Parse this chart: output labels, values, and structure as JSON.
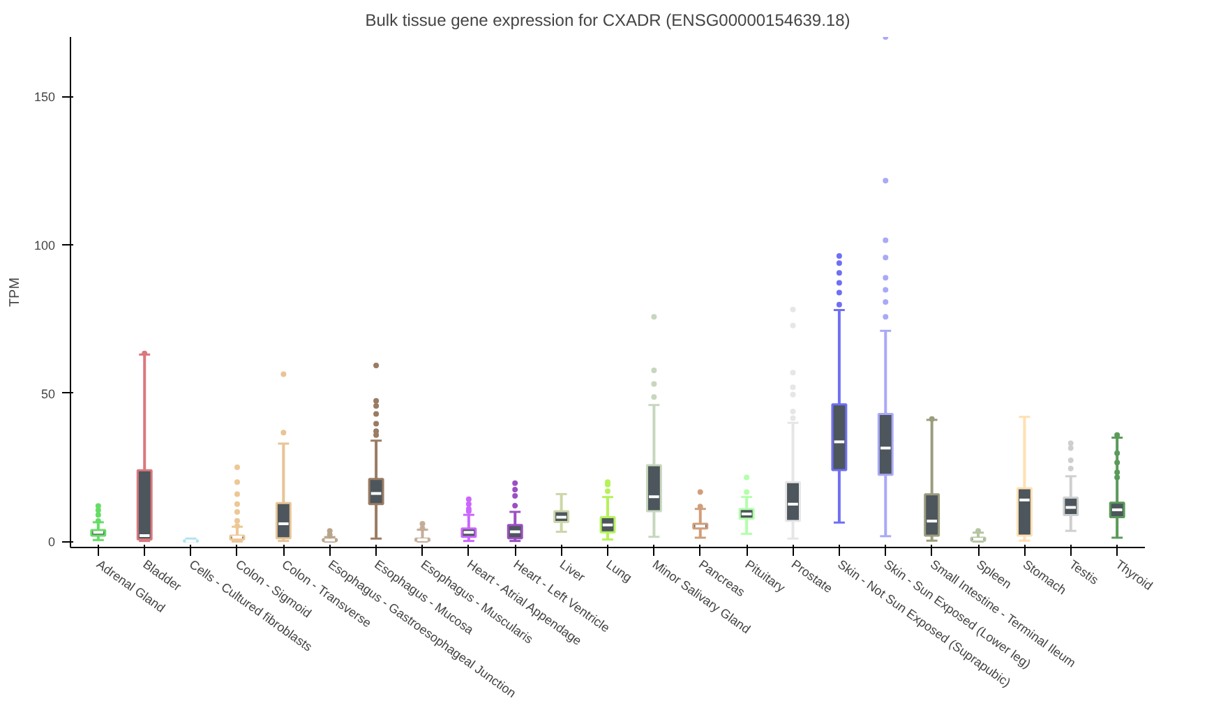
{
  "chart_data": {
    "type": "box",
    "title": "Bulk tissue gene expression for CXADR (ENSG00000154639.18)",
    "ylabel": "TPM",
    "categories": [
      "Adrenal Gland",
      "Bladder",
      "Cells - Cultured fibroblasts",
      "Colon - Sigmoid",
      "Colon - Transverse",
      "Esophagus - Gastroesophageal Junction",
      "Esophagus - Mucosa",
      "Esophagus - Muscularis",
      "Heart - Atrial Appendage",
      "Heart - Left Ventricle",
      "Liver",
      "Lung",
      "Minor Salivary Gland",
      "Pancreas",
      "Pituitary",
      "Prostate",
      "Skin - Not Sun Exposed (Suprapubic)",
      "Skin - Sun Exposed (Lower leg)",
      "Small Intestine - Terminal Ileum",
      "Spleen",
      "Stomach",
      "Testis",
      "Thyroid"
    ],
    "colors": [
      "#66dd66",
      "#d9787d",
      "#aee3ef",
      "#edc795",
      "#e8c496",
      "#b7a48b",
      "#9a7b63",
      "#c4ad98",
      "#cc66ff",
      "#9c4fc2",
      "#ccd6a8",
      "#b5f25a",
      "#c7d7be",
      "#d19e79",
      "#b3ffab",
      "#e6e6e6",
      "#6f6ff5",
      "#a9a9f7",
      "#9c9c7e",
      "#b5c4a1",
      "#ffe0b3",
      "#cfcfcf",
      "#5a9a5a"
    ],
    "boxes": [
      {
        "low": 0.5,
        "q1": 2,
        "median": 3.1,
        "q3": 3.9,
        "high": 6.5,
        "outliers": [
          12,
          10.6,
          9,
          6.9
        ]
      },
      {
        "low": 0.2,
        "q1": 0.7,
        "median": 2,
        "q3": 24,
        "high": 63,
        "outliers": [
          63.4
        ]
      },
      {
        "low": 0,
        "q1": 0,
        "median": 0.2,
        "q3": 0.4,
        "high": 1
      },
      {
        "low": 0,
        "q1": 0.7,
        "median": 1.5,
        "q3": 2,
        "high": 5,
        "outliers": [
          25,
          20,
          16,
          12.6,
          10,
          7,
          5.2
        ]
      },
      {
        "low": 0.2,
        "q1": 1.1,
        "median": 6,
        "q3": 13,
        "high": 33,
        "outliers": [
          36.7,
          56.4
        ]
      },
      {
        "low": 0,
        "q1": 0.2,
        "median": 0.5,
        "q3": 0.8,
        "high": 1.5,
        "outliers": [
          3.6,
          2.3
        ]
      },
      {
        "low": 1,
        "q1": 12.6,
        "median": 16.2,
        "q3": 21.1,
        "high": 34,
        "outliers": [
          59.3,
          47.4,
          45.7,
          43,
          39.7,
          37.2,
          35.9
        ]
      },
      {
        "low": 0,
        "q1": 0.3,
        "median": 0.6,
        "q3": 1,
        "high": 4,
        "outliers": [
          6,
          4.4
        ]
      },
      {
        "low": 0.2,
        "q1": 1.6,
        "median": 3.1,
        "q3": 4.4,
        "high": 9,
        "outliers": [
          14.3,
          12.6,
          11,
          10.2
        ]
      },
      {
        "low": 0.2,
        "q1": 1.1,
        "median": 3.3,
        "q3": 5.6,
        "high": 10,
        "outliers": [
          19.7,
          17.5,
          15.4,
          12.1
        ]
      },
      {
        "low": 3.3,
        "q1": 6.6,
        "median": 8.2,
        "q3": 10.2,
        "high": 16
      },
      {
        "low": 0.7,
        "q1": 3.1,
        "median": 5.6,
        "q3": 8.2,
        "high": 15,
        "outliers": [
          20,
          19.2,
          17
        ]
      },
      {
        "low": 1.6,
        "q1": 10.2,
        "median": 15.1,
        "q3": 25.7,
        "high": 46,
        "outliers": [
          75.7,
          57.7,
          53.1,
          48.7
        ]
      },
      {
        "low": 1.3,
        "q1": 4.4,
        "median": 5.2,
        "q3": 6,
        "high": 11,
        "outliers": [
          16.7,
          11.8
        ]
      },
      {
        "low": 2.6,
        "q1": 7.7,
        "median": 9.3,
        "q3": 11,
        "high": 15,
        "outliers": [
          21.6,
          16.7
        ]
      },
      {
        "low": 1,
        "q1": 6.9,
        "median": 12.6,
        "q3": 20,
        "high": 40,
        "outliers": [
          78.2,
          72.8,
          56.9,
          52,
          49.5,
          43.8,
          41.6
        ]
      },
      {
        "low": 6.4,
        "q1": 24.1,
        "median": 33.6,
        "q3": 46.2,
        "high": 78,
        "outliers": [
          96.2,
          93.8,
          90.5,
          87.2,
          83.9,
          79.8
        ]
      },
      {
        "low": 1.8,
        "q1": 22.5,
        "median": 31.5,
        "q3": 43,
        "high": 71,
        "outliers": [
          170,
          121.6,
          101.5,
          95.7,
          88.9,
          84.8,
          80.7,
          75.7
        ]
      },
      {
        "low": 0.3,
        "q1": 2,
        "median": 6.9,
        "q3": 15.9,
        "high": 41,
        "outliers": [
          41.3
        ]
      },
      {
        "low": 0,
        "q1": 0.3,
        "median": 0.8,
        "q3": 1.3,
        "high": 3,
        "outliers": [
          3.6
        ]
      },
      {
        "low": 0.3,
        "q1": 2,
        "median": 14,
        "q3": 18,
        "high": 42
      },
      {
        "low": 3.6,
        "q1": 8.9,
        "median": 11.5,
        "q3": 14.8,
        "high": 22,
        "outliers": [
          33.1,
          31.5,
          27.4,
          24.6
        ]
      },
      {
        "low": 1.3,
        "q1": 8.2,
        "median": 10.7,
        "q3": 13.1,
        "high": 35,
        "outliers": [
          35.9,
          29.8,
          26.6,
          23.3,
          21.6
        ]
      }
    ],
    "ylim": [
      -2,
      170
    ],
    "yticks": [
      0,
      50,
      100,
      150
    ],
    "grid": false
  }
}
